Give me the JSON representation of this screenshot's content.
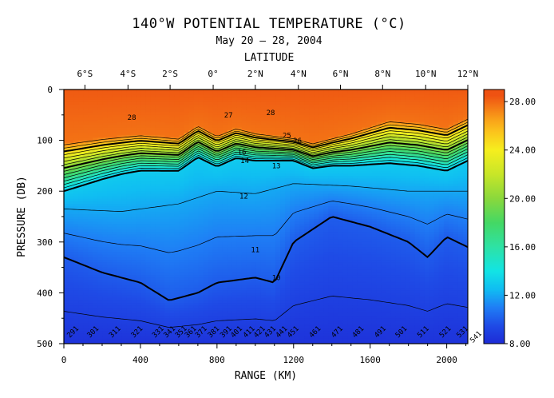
{
  "chart_data": {
    "type": "heatmap",
    "title": "140°W POTENTIAL TEMPERATURE (°C)",
    "subtitle": "May 20 – 28, 2004",
    "xlabel": "RANGE (KM)",
    "top_xlabel": "LATITUDE",
    "ylabel": "PRESSURE (DB)",
    "xlim": [
      0,
      2110
    ],
    "ylim": [
      500,
      0
    ],
    "x_ticks": [
      0,
      400,
      800,
      1200,
      1600,
      2000
    ],
    "x_tick_labels": [
      "0",
      "400",
      "800",
      "1200",
      "1600",
      "2000"
    ],
    "y_ticks": [
      0,
      100,
      200,
      300,
      400,
      500
    ],
    "y_tick_labels": [
      "0",
      "100",
      "200",
      "300",
      "400",
      "500"
    ],
    "lat_ticks": [
      {
        "label": "6°S",
        "range_km": 110
      },
      {
        "label": "4°S",
        "range_km": 335
      },
      {
        "label": "2°S",
        "range_km": 555
      },
      {
        "label": "0°",
        "range_km": 780
      },
      {
        "label": "2°N",
        "range_km": 1000
      },
      {
        "label": "4°N",
        "range_km": 1225
      },
      {
        "label": "6°N",
        "range_km": 1445
      },
      {
        "label": "8°N",
        "range_km": 1665
      },
      {
        "label": "10°N",
        "range_km": 1890
      },
      {
        "label": "12°N",
        "range_km": 2110
      }
    ],
    "colorbar": {
      "min": 8,
      "max": 29,
      "tick_values": [
        8,
        12,
        16,
        20,
        24,
        28
      ],
      "tick_labels": [
        "8.00",
        "12.00",
        "16.00",
        "20.00",
        "24.00",
        "28.00"
      ]
    },
    "color_stops": [
      {
        "value": 8,
        "color": "#1d2bd6"
      },
      {
        "value": 9.5,
        "color": "#1f4be6"
      },
      {
        "value": 11,
        "color": "#1f7ef5"
      },
      {
        "value": 12.5,
        "color": "#10bdf2"
      },
      {
        "value": 14,
        "color": "#12e4e4"
      },
      {
        "value": 16,
        "color": "#2ee2a4"
      },
      {
        "value": 18,
        "color": "#44d864"
      },
      {
        "value": 20,
        "color": "#8ad83c"
      },
      {
        "value": 22,
        "color": "#c8e628"
      },
      {
        "value": 24,
        "color": "#f6ee1e"
      },
      {
        "value": 25.5,
        "color": "#fbc41c"
      },
      {
        "value": 26.5,
        "color": "#f9a219"
      },
      {
        "value": 27.5,
        "color": "#f47a16"
      },
      {
        "value": 28.5,
        "color": "#ef5212"
      }
    ],
    "contour_labels": [
      {
        "text": "28",
        "x": 355,
        "y": 60
      },
      {
        "text": "27",
        "x": 860,
        "y": 55
      },
      {
        "text": "28",
        "x": 1080,
        "y": 50
      },
      {
        "text": "26",
        "x": 1220,
        "y": 105
      },
      {
        "text": "25",
        "x": 1165,
        "y": 95
      },
      {
        "text": "16",
        "x": 930,
        "y": 128
      },
      {
        "text": "14",
        "x": 945,
        "y": 145
      },
      {
        "text": "13",
        "x": 1110,
        "y": 155
      },
      {
        "text": "12",
        "x": 940,
        "y": 215
      },
      {
        "text": "11",
        "x": 1000,
        "y": 320
      },
      {
        "text": "10",
        "x": 1110,
        "y": 375
      },
      {
        "text": "291",
        "x": 55,
        "y": 480
      },
      {
        "text": "301",
        "x": 160,
        "y": 480
      },
      {
        "text": "311",
        "x": 275,
        "y": 480
      },
      {
        "text": "321",
        "x": 390,
        "y": 480
      },
      {
        "text": "331",
        "x": 500,
        "y": 480
      },
      {
        "text": "341",
        "x": 560,
        "y": 480
      },
      {
        "text": "351",
        "x": 620,
        "y": 480
      },
      {
        "text": "361",
        "x": 670,
        "y": 480
      },
      {
        "text": "371",
        "x": 725,
        "y": 480
      },
      {
        "text": "381",
        "x": 790,
        "y": 480
      },
      {
        "text": "391",
        "x": 855,
        "y": 480
      },
      {
        "text": "401",
        "x": 910,
        "y": 480
      },
      {
        "text": "411",
        "x": 975,
        "y": 480
      },
      {
        "text": "421",
        "x": 1030,
        "y": 480
      },
      {
        "text": "431",
        "x": 1085,
        "y": 480
      },
      {
        "text": "441",
        "x": 1145,
        "y": 480
      },
      {
        "text": "451",
        "x": 1205,
        "y": 480
      },
      {
        "text": "461",
        "x": 1320,
        "y": 480
      },
      {
        "text": "471",
        "x": 1435,
        "y": 480
      },
      {
        "text": "481",
        "x": 1545,
        "y": 480
      },
      {
        "text": "491",
        "x": 1660,
        "y": 480
      },
      {
        "text": "501",
        "x": 1770,
        "y": 480
      },
      {
        "text": "511",
        "x": 1885,
        "y": 480
      },
      {
        "text": "521",
        "x": 2000,
        "y": 480
      },
      {
        "text": "531",
        "x": 2090,
        "y": 480
      },
      {
        "text": "541",
        "x": 2160,
        "y": 490
      }
    ],
    "grid": false,
    "legend": "colorbar-right"
  }
}
